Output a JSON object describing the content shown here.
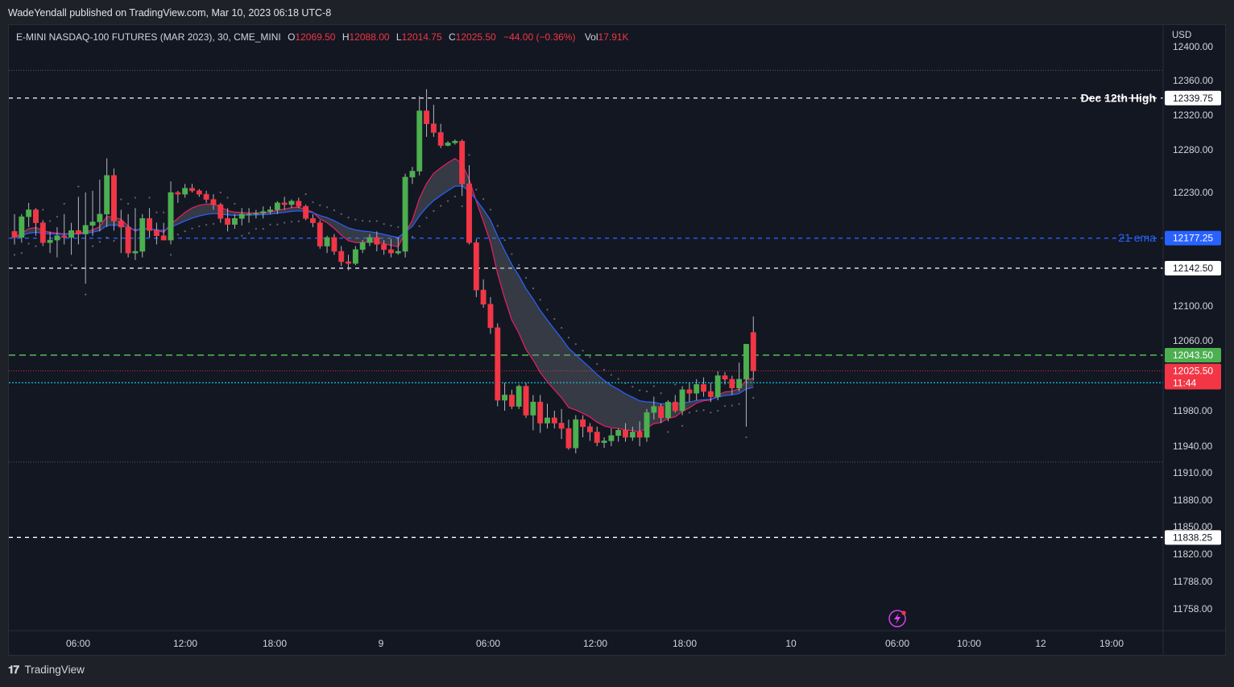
{
  "header": {
    "publisher_line": "WadeYendall published on TradingView.com, Mar 10, 2023 06:18 UTC-8"
  },
  "legend": {
    "symbol": "E-MINI NASDAQ-100 FUTURES (MAR 2023), 30, CME_MINI",
    "open_label": "O",
    "open": "12069.50",
    "high_label": "H",
    "high": "12088.00",
    "low_label": "L",
    "low": "12014.75",
    "close_label": "C",
    "close": "12025.50",
    "change": "−44.00 (−0.36%)",
    "vol_label": "Vol",
    "vol": "17.91K"
  },
  "currency": "USD",
  "footer": {
    "brand": "TradingView"
  },
  "colors": {
    "up": "#4caf50",
    "down": "#f23645",
    "ema_fast": "#e91e63",
    "ema_slow": "#2962ff",
    "band_fill": "#787b86",
    "green_line": "#4caf50",
    "cyan_line": "#00bcd4",
    "background": "#131722"
  },
  "chart_data": {
    "type": "candlestick",
    "title": "E-MINI NASDAQ-100 FUTURES (MAR 2023), 30, CME_MINI",
    "ylim": [
      11740,
      12410
    ],
    "y_ticks": [
      "12400.00",
      "12360.00",
      "12320.00",
      "12280.00",
      "12230.00",
      "12142.50",
      "12100.00",
      "12060.00",
      "11980.00",
      "11940.00",
      "11910.00",
      "11880.00",
      "11850.00",
      "11820.00",
      "11788.00",
      "11758.00"
    ],
    "x_ticks": [
      "06:00",
      "12:00",
      "18:00",
      "9",
      "06:00",
      "12:00",
      "18:00",
      "10",
      "06:00",
      "10:00",
      "12",
      "19:00"
    ],
    "price_levels": [
      {
        "label": "Dec 12th High",
        "value": "12339.75",
        "style": "dashed",
        "color": "#ffffff",
        "tag_bg": "#ffffff",
        "tag_fg": "#131722"
      },
      {
        "label": "21 ema",
        "value": "12177.25",
        "style": "dashed",
        "color": "#2962ff",
        "tag_bg": "#2962ff",
        "tag_fg": "#ffffff"
      },
      {
        "label": "",
        "value": "12142.50",
        "style": "dashed",
        "color": "#ffffff",
        "tag_bg": "#ffffff",
        "tag_fg": "#131722"
      },
      {
        "label": "",
        "value": "12043.50",
        "style": "dashed",
        "color": "#4caf50",
        "tag_bg": "#4caf50",
        "tag_fg": "#ffffff"
      },
      {
        "label": "",
        "value": "11838.25",
        "style": "dashed",
        "color": "#ffffff",
        "tag_bg": "#ffffff",
        "tag_fg": "#131722"
      }
    ],
    "reference_lines": [
      {
        "value": 12012,
        "style": "dotted",
        "color": "#00bcd4"
      },
      {
        "value": 12372,
        "style": "dotted",
        "color": "#787b86"
      },
      {
        "value": 11922,
        "style": "dotted",
        "color": "#787b86"
      }
    ],
    "last_price": {
      "value": "12025.50",
      "countdown": "11:44"
    },
    "candles": [
      [
        12185,
        12205,
        12170,
        12178
      ],
      [
        12178,
        12205,
        12172,
        12202
      ],
      [
        12202,
        12218,
        12190,
        12210
      ],
      [
        12210,
        12212,
        12180,
        12195
      ],
      [
        12195,
        12198,
        12168,
        12172
      ],
      [
        12172,
        12185,
        12160,
        12175
      ],
      [
        12175,
        12190,
        12155,
        12180
      ],
      [
        12180,
        12205,
        12170,
        12178
      ],
      [
        12178,
        12195,
        12158,
        12186
      ],
      [
        12186,
        12225,
        12170,
        12182
      ],
      [
        12182,
        12230,
        12125,
        12192
      ],
      [
        12192,
        12232,
        12180,
        12196
      ],
      [
        12196,
        12245,
        12185,
        12205
      ],
      [
        12205,
        12270,
        12190,
        12250
      ],
      [
        12250,
        12258,
        12186,
        12197
      ],
      [
        12197,
        12210,
        12160,
        12190
      ],
      [
        12190,
        12205,
        12155,
        12160
      ],
      [
        12160,
        12212,
        12152,
        12162
      ],
      [
        12162,
        12205,
        12155,
        12200
      ],
      [
        12200,
        12212,
        12178,
        12186
      ],
      [
        12186,
        12195,
        12170,
        12180
      ],
      [
        12180,
        12195,
        12175,
        12175
      ],
      [
        12175,
        12243,
        12170,
        12230
      ],
      [
        12230,
        12232,
        12218,
        12228
      ],
      [
        12228,
        12240,
        12224,
        12235
      ],
      [
        12235,
        12240,
        12230,
        12232
      ],
      [
        12232,
        12234,
        12225,
        12228
      ],
      [
        12228,
        12232,
        12218,
        12222
      ],
      [
        12222,
        12228,
        12210,
        12216
      ],
      [
        12216,
        12218,
        12195,
        12200
      ],
      [
        12200,
        12212,
        12185,
        12193
      ],
      [
        12193,
        12205,
        12188,
        12200
      ],
      [
        12200,
        12212,
        12192,
        12205
      ],
      [
        12205,
        12212,
        12195,
        12205
      ],
      [
        12205,
        12210,
        12200,
        12206
      ],
      [
        12206,
        12214,
        12200,
        12208
      ],
      [
        12208,
        12214,
        12205,
        12210
      ],
      [
        12210,
        12220,
        12205,
        12218
      ],
      [
        12218,
        12225,
        12210,
        12216
      ],
      [
        12216,
        12222,
        12212,
        12220
      ],
      [
        12220,
        12224,
        12212,
        12214
      ],
      [
        12214,
        12216,
        12198,
        12200
      ],
      [
        12200,
        12205,
        12190,
        12195
      ],
      [
        12195,
        12198,
        12165,
        12168
      ],
      [
        12168,
        12180,
        12160,
        12178
      ],
      [
        12178,
        12182,
        12158,
        12162
      ],
      [
        12162,
        12168,
        12145,
        12150
      ],
      [
        12150,
        12158,
        12140,
        12148
      ],
      [
        12148,
        12168,
        12146,
        12164
      ],
      [
        12164,
        12175,
        12160,
        12172
      ],
      [
        12172,
        12182,
        12168,
        12178
      ],
      [
        12178,
        12185,
        12162,
        12170
      ],
      [
        12170,
        12175,
        12158,
        12164
      ],
      [
        12164,
        12176,
        12155,
        12160
      ],
      [
        12160,
        12178,
        12158,
        12162
      ],
      [
        12162,
        12252,
        12155,
        12248
      ],
      [
        12248,
        12260,
        12240,
        12255
      ],
      [
        12255,
        12342,
        12250,
        12325
      ],
      [
        12325,
        12350,
        12295,
        12310
      ],
      [
        12310,
        12332,
        12295,
        12300
      ],
      [
        12300,
        12310,
        12282,
        12285
      ],
      [
        12285,
        12290,
        12284,
        12288
      ],
      [
        12288,
        12292,
        12286,
        12290
      ],
      [
        12290,
        12292,
        12226,
        12240
      ],
      [
        12240,
        12262,
        12170,
        12172
      ],
      [
        12172,
        12176,
        12110,
        12118
      ],
      [
        12118,
        12130,
        12098,
        12102
      ],
      [
        12102,
        12110,
        12068,
        12075
      ],
      [
        12075,
        12080,
        11985,
        11992
      ],
      [
        11992,
        12012,
        11980,
        11998
      ],
      [
        11998,
        12004,
        11982,
        11985
      ],
      [
        11985,
        12010,
        11982,
        12008
      ],
      [
        12008,
        12012,
        11972,
        11975
      ],
      [
        11975,
        11998,
        11958,
        11990
      ],
      [
        11990,
        11998,
        11955,
        11966
      ],
      [
        11966,
        11988,
        11960,
        11972
      ],
      [
        11972,
        11980,
        11960,
        11966
      ],
      [
        11966,
        11982,
        11948,
        11960
      ],
      [
        11960,
        11970,
        11936,
        11938
      ],
      [
        11938,
        11975,
        11932,
        11970
      ],
      [
        11970,
        11975,
        11950,
        11962
      ],
      [
        11962,
        11966,
        11946,
        11956
      ],
      [
        11956,
        11962,
        11940,
        11944
      ],
      [
        11944,
        11950,
        11938,
        11946
      ],
      [
        11946,
        11960,
        11940,
        11952
      ],
      [
        11952,
        11960,
        11945,
        11958
      ],
      [
        11958,
        11966,
        11945,
        11950
      ],
      [
        11950,
        11962,
        11946,
        11956
      ],
      [
        11956,
        11968,
        11940,
        11950
      ],
      [
        11950,
        11982,
        11945,
        11978
      ],
      [
        11978,
        11996,
        11970,
        11985
      ],
      [
        11985,
        11988,
        11966,
        11972
      ],
      [
        11972,
        11992,
        11968,
        11990
      ],
      [
        11990,
        11998,
        11978,
        11980
      ],
      [
        11980,
        12008,
        11975,
        12004
      ],
      [
        12004,
        12012,
        11990,
        12000
      ],
      [
        12000,
        12016,
        11992,
        12010
      ],
      [
        12010,
        12018,
        11996,
        12002
      ],
      [
        12002,
        12012,
        11990,
        11996
      ],
      [
        11996,
        12025,
        11992,
        12020
      ],
      [
        12020,
        12024,
        12010,
        12016
      ],
      [
        12016,
        12020,
        11998,
        12006
      ],
      [
        12006,
        12035,
        12002,
        12016
      ],
      [
        12016,
        12052,
        11962,
        12056
      ],
      [
        12069.5,
        12088,
        12014.75,
        12025.5
      ]
    ]
  }
}
